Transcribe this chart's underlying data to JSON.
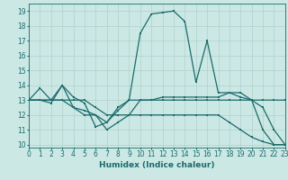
{
  "xlabel": "Humidex (Indice chaleur)",
  "xlim": [
    0,
    23
  ],
  "ylim": [
    9.8,
    19.5
  ],
  "xticks": [
    0,
    1,
    2,
    3,
    4,
    5,
    6,
    7,
    8,
    9,
    10,
    11,
    12,
    13,
    14,
    15,
    16,
    17,
    18,
    19,
    20,
    21,
    22,
    23
  ],
  "yticks": [
    10,
    11,
    12,
    13,
    14,
    15,
    16,
    17,
    18,
    19
  ],
  "bg_color": "#cce8e5",
  "grid_color": "#aed0cc",
  "line_color": "#1a6b6b",
  "line1_x": [
    0,
    1,
    2,
    3,
    4,
    5,
    6,
    7,
    8,
    9,
    10,
    11,
    12,
    13,
    14,
    15,
    16,
    17,
    18,
    19,
    20,
    21,
    22,
    23
  ],
  "line1_y": [
    13.0,
    13.8,
    13.0,
    14.0,
    13.2,
    12.8,
    11.2,
    11.5,
    12.3,
    13.0,
    17.5,
    18.8,
    18.9,
    19.0,
    18.3,
    14.2,
    17.0,
    13.5,
    13.5,
    13.5,
    13.0,
    11.0,
    10.0,
    10.0
  ],
  "line2_x": [
    0,
    1,
    2,
    3,
    4,
    5,
    6,
    7,
    8,
    9,
    10,
    11,
    12,
    13,
    14,
    15,
    16,
    17,
    18,
    19,
    20,
    21,
    22,
    23
  ],
  "line2_y": [
    13.0,
    13.0,
    12.8,
    14.0,
    12.5,
    12.0,
    12.0,
    11.5,
    12.5,
    13.0,
    13.0,
    13.0,
    13.2,
    13.2,
    13.2,
    13.2,
    13.2,
    13.2,
    13.5,
    13.2,
    13.0,
    13.0,
    13.0,
    13.0
  ],
  "line3_x": [
    0,
    1,
    2,
    3,
    4,
    5,
    6,
    7,
    8,
    9,
    10,
    11,
    12,
    13,
    14,
    15,
    16,
    17,
    18,
    19,
    20,
    21,
    22,
    23
  ],
  "line3_y": [
    13.0,
    13.0,
    13.0,
    13.0,
    12.5,
    12.3,
    12.0,
    11.0,
    11.5,
    12.0,
    13.0,
    13.0,
    13.0,
    13.0,
    13.0,
    13.0,
    13.0,
    13.0,
    13.0,
    13.0,
    13.0,
    12.5,
    11.0,
    10.0
  ],
  "line4_x": [
    0,
    1,
    2,
    3,
    4,
    5,
    6,
    7,
    8,
    9,
    10,
    11,
    12,
    13,
    14,
    15,
    16,
    17,
    18,
    19,
    20,
    21,
    22,
    23
  ],
  "line4_y": [
    13.0,
    13.0,
    13.0,
    13.0,
    13.0,
    13.0,
    12.5,
    12.0,
    12.0,
    12.0,
    12.0,
    12.0,
    12.0,
    12.0,
    12.0,
    12.0,
    12.0,
    12.0,
    11.5,
    11.0,
    10.5,
    10.2,
    10.0,
    10.0
  ]
}
